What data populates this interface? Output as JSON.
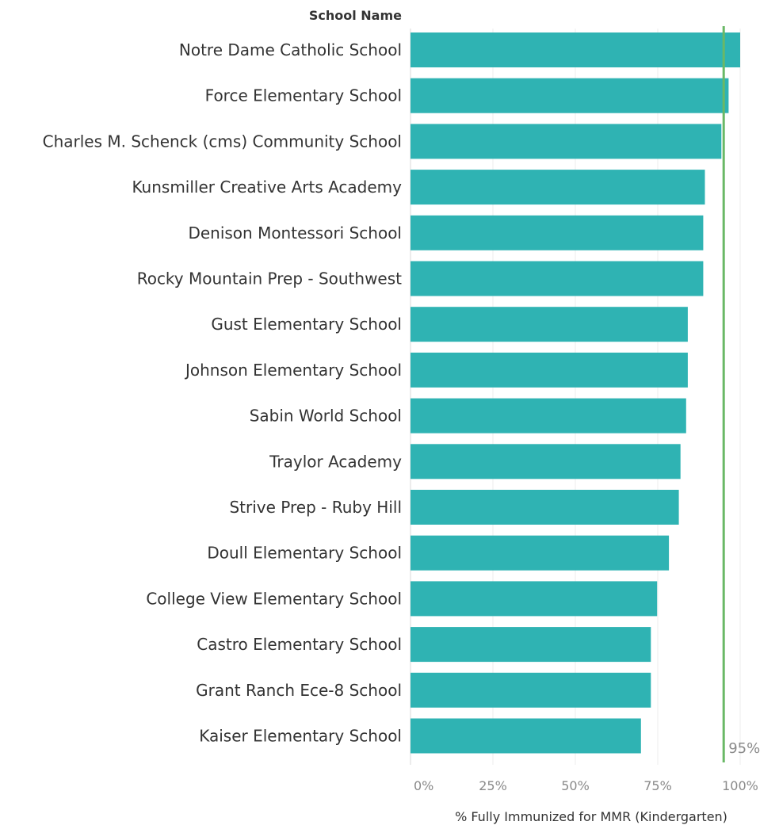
{
  "chart_data": {
    "type": "bar",
    "orientation": "horizontal",
    "row_header": "School Name",
    "xlabel": "% Fully Immunized for MMR (Kindergarten)",
    "xlim": [
      0,
      1
    ],
    "x_ticks": [
      0,
      0.25,
      0.5,
      0.75,
      1
    ],
    "x_tick_labels": [
      "0%",
      "25%",
      "50%",
      "75%",
      "100%"
    ],
    "grid": true,
    "bar_color": "#2fb3b3",
    "categories": [
      "Notre Dame Catholic School",
      "Force Elementary School",
      "Charles M. Schenck (cms) Community School",
      "Kunsmiller Creative Arts Academy",
      "Denison Montessori School",
      "Rocky Mountain Prep - Southwest",
      "Gust Elementary School",
      "Johnson Elementary School",
      "Sabin World School",
      "Traylor Academy",
      "Strive Prep - Ruby Hill",
      "Doull Elementary School",
      "College View Elementary School",
      "Castro Elementary School",
      "Grant Ranch Ece-8 School",
      "Kaiser Elementary School"
    ],
    "values": [
      1.0,
      0.965,
      0.943,
      0.893,
      0.888,
      0.888,
      0.841,
      0.841,
      0.836,
      0.819,
      0.814,
      0.784,
      0.748,
      0.729,
      0.729,
      0.699
    ],
    "reference_line": {
      "value": 0.95,
      "label": "95%",
      "color": "#6ab866"
    }
  }
}
